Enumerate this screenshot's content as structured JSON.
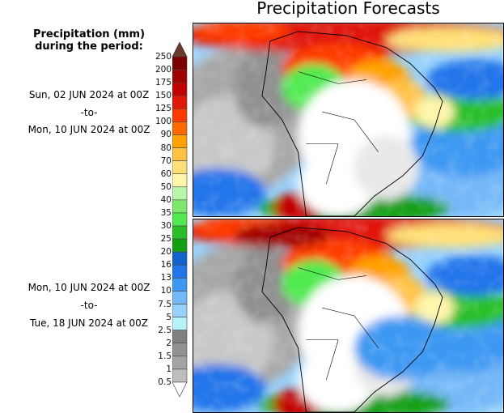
{
  "title": "Precipitation Forecasts",
  "legend_header": [
    "Precipitation (mm)",
    "during the period:"
  ],
  "periods": [
    {
      "start": "Sun, 02 JUN 2024 at 00Z",
      "sep": "-to-",
      "end": "Mon, 10 JUN 2024 at 00Z"
    },
    {
      "start": "Mon, 10 JUN 2024 at 00Z",
      "sep": "-to-",
      "end": "Tue, 18 JUN 2024 at 00Z"
    }
  ],
  "colorbar": {
    "levels": [
      "250",
      "200",
      "175",
      "150",
      "125",
      "100",
      "90",
      "80",
      "70",
      "60",
      "50",
      "40",
      "35",
      "30",
      "25",
      "20",
      "16",
      "13",
      "10",
      "7.5",
      "5",
      "2.5",
      "2",
      "1.5",
      "1",
      "0.5"
    ],
    "colors": [
      "#7a0000",
      "#a00000",
      "#c20000",
      "#e01808",
      "#ff3a00",
      "#ff6a00",
      "#ffa200",
      "#ffc244",
      "#ffe078",
      "#fff6aa",
      "#baf6aa",
      "#7ce86c",
      "#50ea50",
      "#2abf2a",
      "#12a012",
      "#1462d0",
      "#2274ea",
      "#3e98f2",
      "#74b8f8",
      "#98d2fc",
      "#b6f2fa",
      "#808080",
      "#929292",
      "#a4a4a4",
      "#bebebe"
    ],
    "over_color": "#6b3a2a",
    "under_color": "#ffffff"
  }
}
